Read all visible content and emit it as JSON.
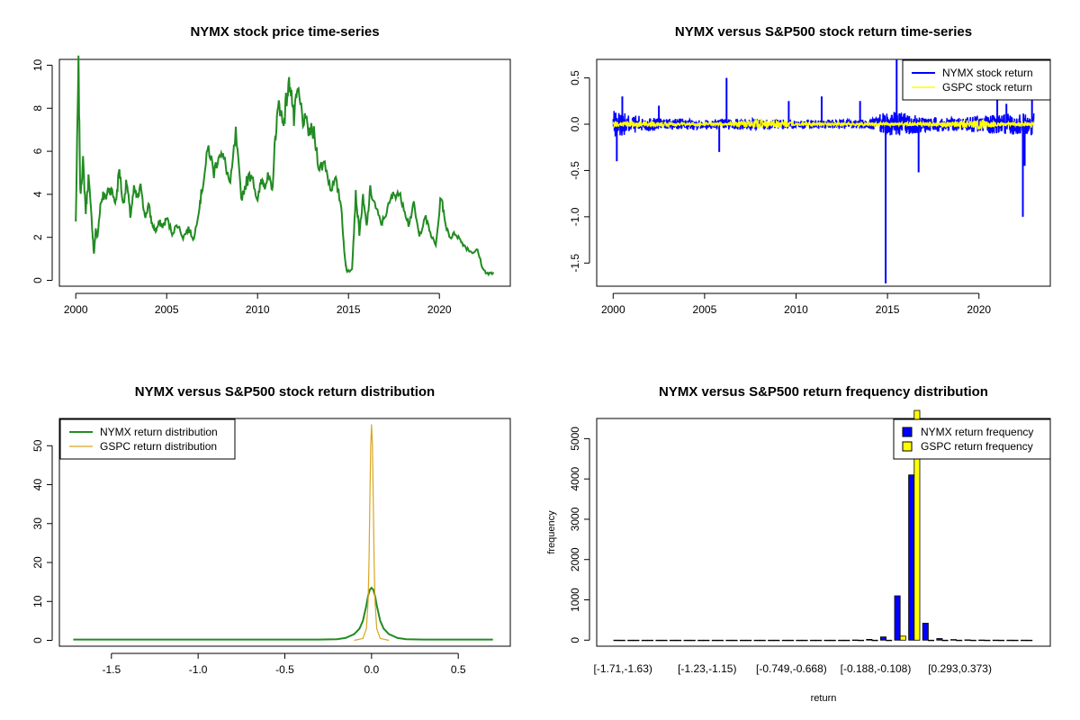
{
  "chart_data": [
    {
      "id": "p1",
      "type": "line",
      "title": "NYMX stock price time-series",
      "color": "#228B22",
      "xlim": [
        2000,
        2023
      ],
      "ylim": [
        0,
        10
      ],
      "xticks": [
        2000,
        2005,
        2010,
        2015,
        2020
      ],
      "xtick_labels": [
        "2000",
        "2005",
        "2010",
        "2015",
        "2020"
      ],
      "yticks": [
        0,
        2,
        4,
        6,
        8,
        10
      ],
      "ytick_labels": [
        "0",
        "2",
        "4",
        "6",
        "8",
        "10"
      ],
      "x": [
        2000.0,
        2000.15,
        2000.25,
        2000.4,
        2000.55,
        2000.7,
        2000.9,
        2001.0,
        2001.1,
        2001.2,
        2001.35,
        2001.5,
        2001.65,
        2001.8,
        2002.0,
        2002.2,
        2002.4,
        2002.6,
        2002.8,
        2003.0,
        2003.2,
        2003.4,
        2003.6,
        2003.8,
        2004.0,
        2004.2,
        2004.4,
        2004.6,
        2004.8,
        2005.0,
        2005.3,
        2005.6,
        2005.9,
        2006.2,
        2006.5,
        2006.8,
        2007.0,
        2007.3,
        2007.6,
        2007.9,
        2008.2,
        2008.5,
        2008.8,
        2009.1,
        2009.4,
        2009.7,
        2010.0,
        2010.2,
        2010.4,
        2010.6,
        2010.8,
        2011.0,
        2011.2,
        2011.4,
        2011.6,
        2011.8,
        2012.0,
        2012.2,
        2012.5,
        2012.8,
        2013.1,
        2013.4,
        2013.7,
        2014.0,
        2014.3,
        2014.6,
        2014.8,
        2014.9,
        2015.0,
        2015.2,
        2015.4,
        2015.6,
        2015.8,
        2016.0,
        2016.2,
        2016.5,
        2016.8,
        2017.1,
        2017.4,
        2017.7,
        2018.0,
        2018.3,
        2018.6,
        2018.9,
        2019.2,
        2019.5,
        2019.8,
        2020.1,
        2020.3,
        2020.6,
        2020.9,
        2021.2,
        2021.5,
        2021.8,
        2022.1,
        2022.4,
        2022.7,
        2023.0
      ],
      "y": [
        2.7,
        10.0,
        4.0,
        5.5,
        3.2,
        4.8,
        2.5,
        1.2,
        2.4,
        2.0,
        3.5,
        4.0,
        3.8,
        4.3,
        4.1,
        3.6,
        5.2,
        3.5,
        4.6,
        3.0,
        4.2,
        3.8,
        4.4,
        2.9,
        3.5,
        2.6,
        2.3,
        2.7,
        2.5,
        2.9,
        2.2,
        2.6,
        2.0,
        2.4,
        1.9,
        3.5,
        4.5,
        6.2,
        5.0,
        6.0,
        5.5,
        4.4,
        6.8,
        3.8,
        4.6,
        5.0,
        3.6,
        4.7,
        4.5,
        4.8,
        4.1,
        7.0,
        8.3,
        7.2,
        8.5,
        9.3,
        7.4,
        8.8,
        7.5,
        7.0,
        6.8,
        5.2,
        5.5,
        4.3,
        4.6,
        3.5,
        1.0,
        0.5,
        0.4,
        0.6,
        4.0,
        2.2,
        3.8,
        2.5,
        4.2,
        3.4,
        2.6,
        3.2,
        3.9,
        4.1,
        3.6,
        2.6,
        3.5,
        2.0,
        3.0,
        2.2,
        1.6,
        4.0,
        2.7,
        2.0,
        2.2,
        1.8,
        1.5,
        1.3,
        1.4,
        0.5,
        0.3,
        0.35
      ]
    },
    {
      "id": "p2",
      "type": "line",
      "title": "NYMX versus S&P500 stock return time-series",
      "xlim": [
        2000,
        2023
      ],
      "ylim": [
        -1.75,
        0.7
      ],
      "xticks": [
        2000,
        2005,
        2010,
        2015,
        2020
      ],
      "xtick_labels": [
        "2000",
        "2005",
        "2010",
        "2015",
        "2020"
      ],
      "yticks": [
        -1.5,
        -1.0,
        -0.5,
        0.0,
        0.5
      ],
      "ytick_labels": [
        "-1.5",
        "-1.0",
        "-0.5",
        "0.0",
        "0.5"
      ],
      "legend": [
        "NYMX stock return",
        "GSPC stock return"
      ],
      "legend_position": "top-right",
      "series": [
        {
          "name": "NYMX stock return",
          "color": "#0000FF",
          "band_x": [
            2000,
            2001,
            2002,
            2003,
            2004,
            2005,
            2006,
            2007,
            2008,
            2009,
            2010,
            2011,
            2012,
            2013,
            2014,
            2015,
            2016,
            2017,
            2018,
            2019,
            2020,
            2021,
            2022,
            2023
          ],
          "band_amp": [
            0.15,
            0.1,
            0.08,
            0.06,
            0.06,
            0.05,
            0.06,
            0.06,
            0.06,
            0.05,
            0.05,
            0.05,
            0.05,
            0.05,
            0.05,
            0.15,
            0.12,
            0.08,
            0.08,
            0.07,
            0.1,
            0.1,
            0.12,
            0.12
          ],
          "spike_x": [
            2000.2,
            2000.5,
            2002.5,
            2005.8,
            2006.2,
            2009.6,
            2011.4,
            2013.5,
            2014.9,
            2015.5,
            2016.7,
            2021.0,
            2021.5,
            2022.4,
            2022.5,
            2022.9
          ],
          "spike_y": [
            -0.4,
            0.3,
            0.2,
            -0.3,
            0.5,
            0.25,
            0.3,
            0.25,
            -1.72,
            0.7,
            -0.52,
            0.3,
            0.22,
            -1.0,
            -0.45,
            0.35
          ]
        },
        {
          "name": "GSPC stock return",
          "color": "#FFFF00",
          "band_x": [
            2000,
            2002,
            2004,
            2006,
            2008,
            2009,
            2010,
            2012,
            2014,
            2016,
            2018,
            2020,
            2021,
            2023
          ],
          "band_amp": [
            0.03,
            0.03,
            0.015,
            0.015,
            0.05,
            0.04,
            0.02,
            0.015,
            0.015,
            0.02,
            0.02,
            0.06,
            0.02,
            0.02
          ]
        }
      ]
    },
    {
      "id": "p3",
      "type": "line",
      "title": "NYMX versus S&P500 stock return distribution",
      "xlim": [
        -1.8,
        0.8
      ],
      "ylim": [
        -1.5,
        57
      ],
      "xticks": [
        -1.5,
        -1.0,
        -0.5,
        0.0,
        0.5
      ],
      "xtick_labels": [
        "-1.5",
        "-1.0",
        "-0.5",
        "0.0",
        "0.5"
      ],
      "yticks": [
        0,
        10,
        20,
        30,
        40,
        50
      ],
      "ytick_labels": [
        "0",
        "10",
        "20",
        "30",
        "40",
        "50"
      ],
      "legend": [
        "NYMX return distribution",
        "GSPC return distribution"
      ],
      "legend_position": "top-left",
      "series": [
        {
          "name": "NYMX return distribution",
          "color": "#228B22",
          "x": [
            -1.72,
            -0.3,
            -0.2,
            -0.15,
            -0.1,
            -0.07,
            -0.05,
            -0.03,
            -0.02,
            -0.01,
            0.0,
            0.01,
            0.02,
            0.03,
            0.05,
            0.07,
            0.1,
            0.15,
            0.2,
            0.3,
            0.7
          ],
          "y": [
            0.2,
            0.2,
            0.3,
            0.6,
            1.6,
            3.0,
            5.0,
            9.0,
            11.5,
            13.0,
            13.5,
            13.0,
            11.5,
            9.0,
            5.0,
            3.0,
            1.6,
            0.6,
            0.3,
            0.2,
            0.2
          ]
        },
        {
          "name": "GSPC return distribution",
          "color": "#DAA520",
          "x": [
            -0.1,
            -0.05,
            -0.03,
            -0.02,
            -0.015,
            -0.01,
            -0.005,
            0.0,
            0.005,
            0.01,
            0.015,
            0.02,
            0.03,
            0.05,
            0.1
          ],
          "y": [
            0.0,
            0.5,
            3.0,
            10.0,
            20.0,
            35.0,
            50.0,
            55.5,
            50.0,
            35.0,
            20.0,
            10.0,
            3.0,
            0.5,
            0.0
          ]
        }
      ]
    },
    {
      "id": "p4",
      "type": "bar",
      "title": "NYMX versus S&P500 return frequency distribution",
      "xlabel": "return",
      "ylabel": "frequency",
      "ylim": [
        0,
        5500
      ],
      "yticks": [
        0,
        1000,
        2000,
        3000,
        4000,
        5000
      ],
      "ytick_labels": [
        "0",
        "1000",
        "2000",
        "3000",
        "4000",
        "5000"
      ],
      "category_count": 30,
      "shown_category_labels": [
        {
          "index": 0,
          "label": "[-1.71,-1.63)"
        },
        {
          "index": 6,
          "label": "[-1.23,-1.15)"
        },
        {
          "index": 12,
          "label": "[-0.749,-0.668)"
        },
        {
          "index": 18,
          "label": "[-0.188,-0.108)"
        },
        {
          "index": 24,
          "label": "[0.293,0.373)"
        }
      ],
      "legend": [
        "NYMX return frequency",
        "GSPC return frequency"
      ],
      "legend_position": "top-right",
      "series": [
        {
          "name": "NYMX return frequency",
          "color": "#0000FF",
          "values": [
            1,
            0,
            0,
            0,
            0,
            0,
            0,
            0,
            0,
            0,
            0,
            0,
            0,
            0,
            0,
            0,
            0,
            5,
            20,
            80,
            1100,
            4100,
            420,
            40,
            15,
            8,
            4,
            2,
            1,
            1
          ]
        },
        {
          "name": "GSPC return frequency",
          "color": "#FFFF00",
          "values": [
            0,
            0,
            0,
            0,
            0,
            0,
            0,
            0,
            0,
            0,
            0,
            0,
            0,
            0,
            0,
            0,
            0,
            0,
            0,
            0,
            100,
            5700,
            0,
            0,
            0,
            0,
            0,
            0,
            0,
            0
          ]
        }
      ]
    }
  ]
}
